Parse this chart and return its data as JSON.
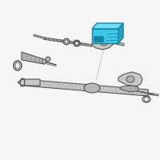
{
  "bg": "#f5f5f5",
  "lc": "#555555",
  "ec": "#444444",
  "pc": "#c8c8c8",
  "pc2": "#b0b0b0",
  "hc": "#3ec8e8",
  "hc_top": "#70ddf0",
  "hc_side": "#28a0c0",
  "he": "#1880a0",
  "fig_w": 2.0,
  "fig_h": 2.0,
  "dpi": 100
}
